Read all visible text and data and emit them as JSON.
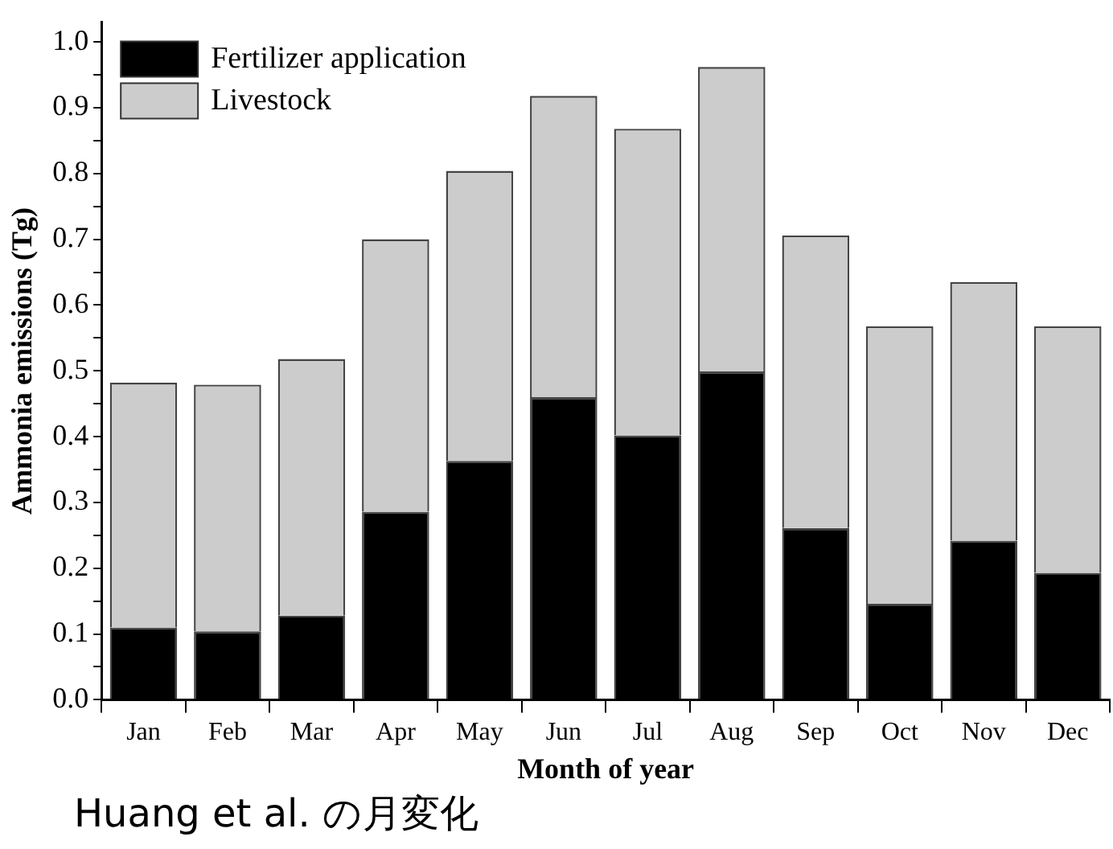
{
  "chart_data": {
    "type": "bar",
    "stacked": true,
    "xlabel": "Month of year",
    "ylabel": "Ammonia emissions (Tg)",
    "categories": [
      "Jan",
      "Feb",
      "Mar",
      "Apr",
      "May",
      "Jun",
      "Jul",
      "Aug",
      "Sep",
      "Oct",
      "Nov",
      "Dec"
    ],
    "series": [
      {
        "name": "Fertilizer application",
        "color": "#000000",
        "values": [
          0.11,
          0.104,
          0.128,
          0.286,
          0.363,
          0.46,
          0.402,
          0.499,
          0.261,
          0.146,
          0.242,
          0.193
        ]
      },
      {
        "name": "Livestock",
        "color": "#cccccc",
        "values": [
          0.372,
          0.375,
          0.39,
          0.414,
          0.441,
          0.458,
          0.466,
          0.463,
          0.445,
          0.422,
          0.393,
          0.375
        ]
      }
    ],
    "ylim": [
      0,
      1.03
    ],
    "yticks": [
      {
        "value": 0,
        "label": "0.0"
      },
      {
        "value": 0.05,
        "label": null
      },
      {
        "value": 0.1,
        "label": "0.1"
      },
      {
        "value": 0.15,
        "label": null
      },
      {
        "value": 0.2,
        "label": "0.2"
      },
      {
        "value": 0.25,
        "label": null
      },
      {
        "value": 0.3,
        "label": "0.3"
      },
      {
        "value": 0.35,
        "label": null
      },
      {
        "value": 0.4,
        "label": "0.4"
      },
      {
        "value": 0.45,
        "label": null
      },
      {
        "value": 0.5,
        "label": "0.5"
      },
      {
        "value": 0.55,
        "label": null
      },
      {
        "value": 0.6,
        "label": "0.6"
      },
      {
        "value": 0.65,
        "label": null
      },
      {
        "value": 0.7,
        "label": "0.7"
      },
      {
        "value": 0.75,
        "label": null
      },
      {
        "value": 0.8,
        "label": "0.8"
      },
      {
        "value": 0.85,
        "label": null
      },
      {
        "value": 0.9,
        "label": "0.9"
      },
      {
        "value": 0.95,
        "label": null
      },
      {
        "value": 1,
        "label": "1.0"
      }
    ],
    "legend": "top left",
    "annotations": [
      "Huang et al. の月変化"
    ]
  }
}
